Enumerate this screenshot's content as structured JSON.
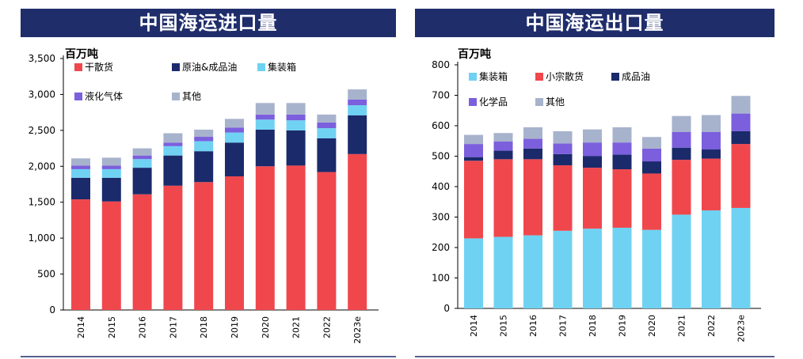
{
  "chart_data": [
    {
      "type": "bar",
      "stacked": true,
      "title": "中国海运进口量",
      "ylabel": "百万吨",
      "categories": [
        "2014",
        "2015",
        "2016",
        "2017",
        "2018",
        "2019",
        "2020",
        "2021",
        "2022",
        "2023e"
      ],
      "ylim": [
        0,
        3500
      ],
      "yticks": [
        "0",
        "500",
        "1,000",
        "1,500",
        "2,000",
        "2,500",
        "3,000",
        "3,500"
      ],
      "yticks_values": [
        0,
        500,
        1000,
        1500,
        2000,
        2500,
        3000,
        3500
      ],
      "legend_position": "top",
      "grid": false,
      "series": [
        {
          "name": "干散货",
          "color": "#f0474d",
          "values": [
            1540,
            1510,
            1610,
            1730,
            1780,
            1860,
            2000,
            2010,
            1920,
            2170
          ]
        },
        {
          "name": "原油&成品油",
          "color": "#1b2a6b",
          "values": [
            300,
            330,
            370,
            420,
            430,
            470,
            510,
            490,
            470,
            540
          ]
        },
        {
          "name": "集装箱",
          "color": "#6fd2f2",
          "values": [
            120,
            120,
            120,
            130,
            140,
            140,
            140,
            140,
            140,
            140
          ]
        },
        {
          "name": "液化气体",
          "color": "#7b5fdd",
          "values": [
            50,
            50,
            50,
            50,
            60,
            70,
            70,
            80,
            80,
            80
          ]
        },
        {
          "name": "其他",
          "color": "#a7b3cc",
          "values": [
            100,
            110,
            100,
            130,
            100,
            120,
            160,
            160,
            110,
            140
          ]
        }
      ]
    },
    {
      "type": "bar",
      "stacked": true,
      "title": "中国海运出口量",
      "ylabel": "百万吨",
      "categories": [
        "2014",
        "2015",
        "2016",
        "2017",
        "2018",
        "2019",
        "2020",
        "2021",
        "2022",
        "2023e"
      ],
      "ylim": [
        0,
        800
      ],
      "yticks": [
        "0",
        "100",
        "200",
        "300",
        "400",
        "500",
        "600",
        "700",
        "800"
      ],
      "yticks_values": [
        0,
        100,
        200,
        300,
        400,
        500,
        600,
        700,
        800
      ],
      "legend_position": "top",
      "grid": false,
      "series": [
        {
          "name": "集装箱",
          "color": "#6fd2f2",
          "values": [
            230,
            235,
            240,
            255,
            262,
            265,
            258,
            308,
            322,
            330
          ]
        },
        {
          "name": "小宗散货",
          "color": "#f0474d",
          "values": [
            255,
            255,
            250,
            215,
            200,
            192,
            185,
            180,
            170,
            210
          ]
        },
        {
          "name": "成品油",
          "color": "#1b2a6b",
          "values": [
            12,
            28,
            35,
            37,
            38,
            48,
            40,
            40,
            30,
            42
          ]
        },
        {
          "name": "化学品",
          "color": "#7b5fdd",
          "values": [
            43,
            30,
            32,
            35,
            45,
            40,
            42,
            52,
            58,
            58
          ]
        },
        {
          "name": "其他",
          "color": "#a7b3cc",
          "values": [
            30,
            28,
            38,
            40,
            43,
            50,
            38,
            52,
            55,
            58
          ]
        }
      ]
    }
  ]
}
